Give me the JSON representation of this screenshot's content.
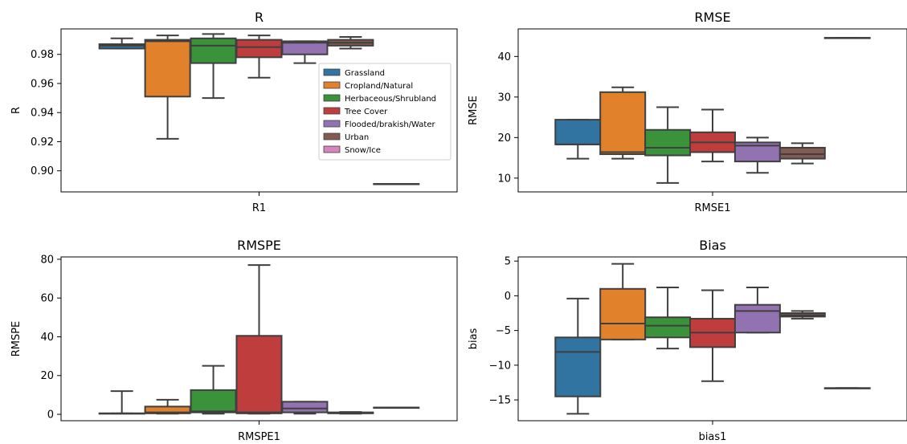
{
  "colors": {
    "Grassland": "#3274a1",
    "Cropland/Natural": "#e1812c",
    "Herbaceous/Shrubland": "#3a923a",
    "Tree Cover": "#c03d3e",
    "Flooded/brakish/Water": "#9372b2",
    "Urban": "#845b53",
    "Snow/Ice": "#d684bd",
    "edge": "#3f3f3f"
  },
  "legend": {
    "placement": "top-right of R panel",
    "entries": [
      "Grassland",
      "Cropland/Natural",
      "Herbaceous/Shrubland",
      "Tree Cover",
      "Flooded/brakish/Water",
      "Urban",
      "Snow/Ice"
    ]
  },
  "chart_data": [
    {
      "type": "box",
      "title": "R",
      "xlabel": "R1",
      "ylabel": "R",
      "ylim": [
        0.8855,
        0.9975
      ],
      "yticks": [
        0.9,
        0.92,
        0.94,
        0.96,
        0.98
      ],
      "ytick_labels": [
        "0.90",
        "0.92",
        "0.94",
        "0.96",
        "0.98"
      ],
      "categories": [
        "R1"
      ],
      "series": [
        {
          "name": "Grassland",
          "whislo": 0.984,
          "q1": 0.984,
          "med": 0.986,
          "q3": 0.987,
          "whishi": 0.991
        },
        {
          "name": "Cropland/Natural",
          "whislo": 0.922,
          "q1": 0.951,
          "med": 0.989,
          "q3": 0.99,
          "whishi": 0.993
        },
        {
          "name": "Herbaceous/Shrubland",
          "whislo": 0.95,
          "q1": 0.974,
          "med": 0.986,
          "q3": 0.991,
          "whishi": 0.994
        },
        {
          "name": "Tree Cover",
          "whislo": 0.964,
          "q1": 0.978,
          "med": 0.985,
          "q3": 0.99,
          "whishi": 0.993
        },
        {
          "name": "Flooded/brakish/Water",
          "whislo": 0.974,
          "q1": 0.98,
          "med": 0.988,
          "q3": 0.989,
          "whishi": 0.989
        },
        {
          "name": "Urban",
          "whislo": 0.984,
          "q1": 0.986,
          "med": 0.988,
          "q3": 0.99,
          "whishi": 0.992
        },
        {
          "name": "Snow/Ice",
          "whislo": 0.891,
          "q1": 0.891,
          "med": 0.891,
          "q3": 0.891,
          "whishi": 0.891
        }
      ]
    },
    {
      "type": "box",
      "title": "RMSE",
      "xlabel": "RMSE1",
      "ylabel": "RMSE",
      "ylim": [
        6.6,
        46.8
      ],
      "yticks": [
        10,
        20,
        30,
        40
      ],
      "ytick_labels": [
        "10",
        "20",
        "30",
        "40"
      ],
      "categories": [
        "RMSE1"
      ],
      "series": [
        {
          "name": "Grassland",
          "whislo": 14.8,
          "q1": 18.3,
          "med": 18.3,
          "q3": 24.4,
          "whishi": 24.4
        },
        {
          "name": "Cropland/Natural",
          "whislo": 14.8,
          "q1": 15.9,
          "med": 16.4,
          "q3": 31.2,
          "whishi": 32.4
        },
        {
          "name": "Herbaceous/Shrubland",
          "whislo": 8.8,
          "q1": 15.6,
          "med": 17.5,
          "q3": 21.9,
          "whishi": 27.5
        },
        {
          "name": "Tree Cover",
          "whislo": 14.1,
          "q1": 16.4,
          "med": 18.8,
          "q3": 21.3,
          "whishi": 26.9
        },
        {
          "name": "Flooded/brakish/Water",
          "whislo": 11.3,
          "q1": 14.1,
          "med": 18.0,
          "q3": 18.8,
          "whishi": 20.0
        },
        {
          "name": "Urban",
          "whislo": 13.6,
          "q1": 14.8,
          "med": 15.9,
          "q3": 17.5,
          "whishi": 18.6
        },
        {
          "name": "Snow/Ice",
          "whislo": 44.6,
          "q1": 44.6,
          "med": 44.6,
          "q3": 44.6,
          "whishi": 44.6
        }
      ]
    },
    {
      "type": "box",
      "title": "RMSPE",
      "xlabel": "RMSPE1",
      "ylabel": "RMSPE",
      "ylim": [
        -3.3,
        81.2
      ],
      "yticks": [
        0,
        20,
        40,
        60,
        80
      ],
      "ytick_labels": [
        "0",
        "20",
        "40",
        "60",
        "80"
      ],
      "categories": [
        "RMSPE1"
      ],
      "series": [
        {
          "name": "Grassland",
          "whislo": 0.5,
          "q1": 0.5,
          "med": 0.5,
          "q3": 0.5,
          "whishi": 12.0
        },
        {
          "name": "Cropland/Natural",
          "whislo": 0.3,
          "q1": 0.5,
          "med": 1.0,
          "q3": 4.0,
          "whishi": 7.5
        },
        {
          "name": "Herbaceous/Shrubland",
          "whislo": 0.3,
          "q1": 1.0,
          "med": 1.5,
          "q3": 12.5,
          "whishi": 25.0
        },
        {
          "name": "Tree Cover",
          "whislo": 0.3,
          "q1": 0.5,
          "med": 1.0,
          "q3": 40.5,
          "whishi": 77.0
        },
        {
          "name": "Flooded/brakish/Water",
          "whislo": 0.3,
          "q1": 1.0,
          "med": 3.0,
          "q3": 6.5,
          "whishi": 6.5
        },
        {
          "name": "Urban",
          "whislo": 0.3,
          "q1": 0.5,
          "med": 0.8,
          "q3": 1.0,
          "whishi": 1.2
        },
        {
          "name": "Snow/Ice",
          "whislo": 3.5,
          "q1": 3.5,
          "med": 3.5,
          "q3": 3.5,
          "whishi": 3.5
        }
      ]
    },
    {
      "type": "box",
      "title": "Bias",
      "xlabel": "bias1",
      "ylabel": "bias",
      "ylim": [
        -18.0,
        5.6
      ],
      "yticks": [
        -15,
        -10,
        -5,
        0,
        5
      ],
      "ytick_labels": [
        "−15",
        "−10",
        "−5",
        "0",
        "5"
      ],
      "categories": [
        "bias1"
      ],
      "series": [
        {
          "name": "Grassland",
          "whislo": -17.0,
          "q1": -14.5,
          "med": -8.1,
          "q3": -6.0,
          "whishi": -0.4
        },
        {
          "name": "Cropland/Natural",
          "whislo": -6.3,
          "q1": -6.3,
          "med": -4.0,
          "q3": 1.0,
          "whishi": 4.6
        },
        {
          "name": "Herbaceous/Shrubland",
          "whislo": -7.6,
          "q1": -6.0,
          "med": -4.3,
          "q3": -3.1,
          "whishi": 1.2
        },
        {
          "name": "Tree Cover",
          "whislo": -12.3,
          "q1": -7.4,
          "med": -5.3,
          "q3": -3.3,
          "whishi": 0.8
        },
        {
          "name": "Flooded/brakish/Water",
          "whislo": -5.3,
          "q1": -5.3,
          "med": -2.2,
          "q3": -1.3,
          "whishi": 1.2
        },
        {
          "name": "Urban",
          "whislo": -3.3,
          "q1": -3.0,
          "med": -2.8,
          "q3": -2.5,
          "whishi": -2.2
        },
        {
          "name": "Snow/Ice",
          "whislo": -13.3,
          "q1": -13.3,
          "med": -13.3,
          "q3": -13.3,
          "whishi": -13.3
        }
      ]
    }
  ]
}
